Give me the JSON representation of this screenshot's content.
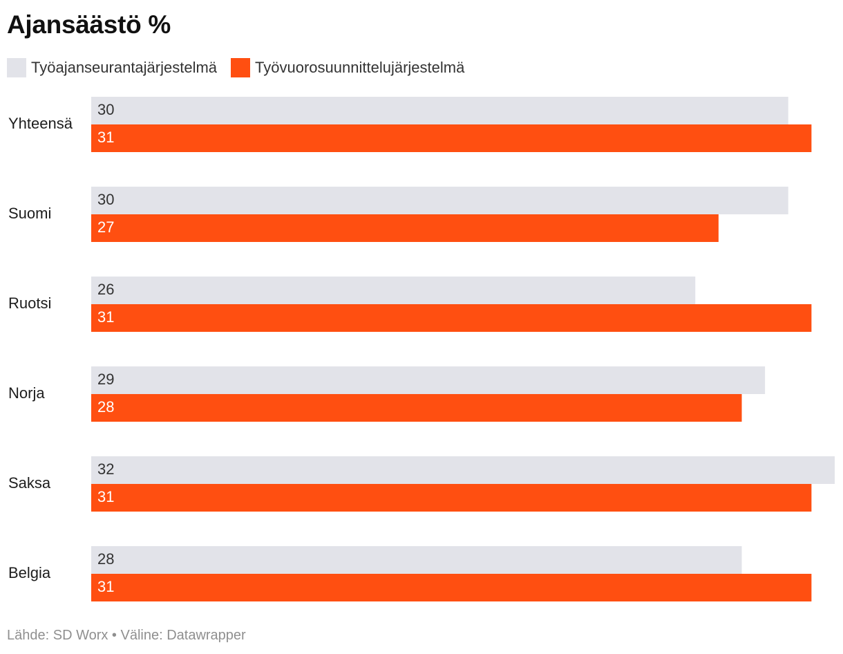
{
  "chart_data": {
    "type": "bar",
    "orientation": "horizontal",
    "title": "Ajansäästö %",
    "categories": [
      "Yhteensä",
      "Suomi",
      "Ruotsi",
      "Norja",
      "Saksa",
      "Belgia"
    ],
    "series": [
      {
        "name": "Työajanseurantajärjestelmä",
        "values": [
          30,
          30,
          26,
          29,
          32,
          28
        ],
        "color": "#e2e3e9",
        "label_color": "#333333"
      },
      {
        "name": "Työvuorosuunnittelujärjestelmä",
        "values": [
          31,
          27,
          31,
          28,
          31,
          31
        ],
        "color": "#ff4f11",
        "label_color": "#ffffff"
      }
    ],
    "xlim": [
      0,
      32
    ],
    "grid": false,
    "legend_position": "top-left",
    "data_labels": "inside-left",
    "source": "Lähde: SD Worx • Väline: Datawrapper"
  }
}
